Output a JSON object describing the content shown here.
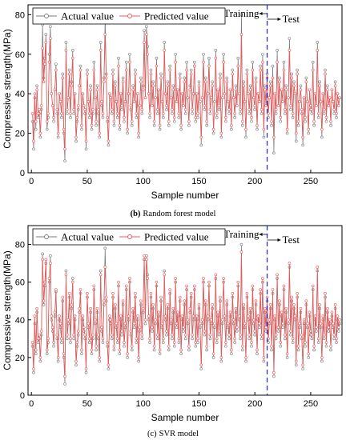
{
  "chart_data": [
    {
      "type": "line",
      "panel_caption": {
        "letter": "(b)",
        "text": "Random forest model"
      },
      "xlabel": "Sample number",
      "ylabel": "Compressive strength(MPa)",
      "xlim": [
        -3,
        278
      ],
      "ylim": [
        0,
        85
      ],
      "xticks": [
        0,
        50,
        100,
        150,
        200,
        250
      ],
      "yticks": [
        0,
        20,
        40,
        60,
        80
      ],
      "split_x": 211,
      "split_labels": {
        "left": "Training",
        "right": "Test"
      },
      "legend_position": "top-left",
      "series": [
        {
          "name": "Actual value",
          "color": "#7a7a7a",
          "marker": "circle",
          "values": [
            26,
            12,
            38,
            22,
            44,
            28,
            30,
            18,
            32,
            75,
            48,
            58,
            70,
            22,
            28,
            60,
            74,
            40,
            34,
            26,
            42,
            55,
            30,
            18,
            40,
            36,
            28,
            50,
            20,
            6,
            66,
            30,
            38,
            52,
            28,
            46,
            62,
            30,
            40,
            16,
            26,
            32,
            44,
            54,
            22,
            40,
            34,
            30,
            12,
            52,
            36,
            28,
            44,
            22,
            30,
            56,
            38,
            24,
            44,
            30,
            18,
            66,
            34,
            28,
            48,
            78,
            50,
            26,
            14,
            40,
            38,
            30,
            52,
            24,
            46,
            36,
            28,
            58,
            22,
            40,
            32,
            48,
            26,
            36,
            56,
            20,
            40,
            60,
            32,
            24,
            44,
            36,
            52,
            28,
            40,
            18,
            34,
            48,
            30,
            44,
            72,
            38,
            74,
            64,
            40,
            28,
            52,
            34,
            46,
            24,
            38,
            58,
            30,
            42,
            22,
            50,
            36,
            28,
            66,
            40,
            32,
            46,
            24,
            54,
            38,
            30,
            44,
            26,
            60,
            36,
            42,
            28,
            50,
            22,
            40,
            34,
            48,
            30,
            56,
            38,
            24,
            44,
            52,
            30,
            40,
            56,
            26,
            40,
            28,
            46,
            36,
            14,
            38,
            60,
            32,
            48,
            24,
            40,
            58,
            30,
            38,
            46,
            20,
            36,
            62,
            28,
            42,
            32,
            50,
            18,
            38,
            60,
            40,
            26,
            48,
            36,
            30,
            42,
            22,
            52,
            38,
            28,
            44,
            34,
            58,
            40,
            30,
            80,
            24,
            46,
            36,
            18,
            52,
            40,
            30,
            44,
            26,
            56,
            38,
            32,
            48,
            22,
            40,
            36,
            54,
            30,
            60,
            18,
            44,
            34,
            50,
            28,
            38,
            46,
            24,
            54,
            10,
            40,
            30,
            62,
            34,
            48,
            26,
            42,
            36,
            56,
            30,
            44,
            20,
            38,
            68,
            32,
            50,
            28,
            46,
            40,
            16,
            52,
            24,
            36,
            44,
            30,
            14,
            38,
            26,
            48,
            36,
            20,
            42,
            32,
            30,
            56,
            24,
            40,
            34,
            66,
            28,
            46,
            36,
            18,
            40,
            30,
            52,
            26,
            44,
            34,
            38,
            24,
            42,
            36,
            30,
            46,
            28,
            40,
            34,
            38
          ]
        },
        {
          "name": "Predicted value",
          "color": "#ef5757",
          "marker": "circle",
          "values": [
            30,
            16,
            40,
            26,
            42,
            30,
            32,
            20,
            34,
            63,
            46,
            55,
            66,
            26,
            30,
            56,
            68,
            40,
            34,
            28,
            42,
            52,
            32,
            20,
            40,
            36,
            30,
            48,
            22,
            12,
            62,
            32,
            38,
            50,
            30,
            44,
            58,
            32,
            40,
            18,
            28,
            34,
            44,
            52,
            24,
            40,
            34,
            32,
            16,
            50,
            36,
            30,
            42,
            24,
            32,
            52,
            38,
            26,
            42,
            32,
            20,
            62,
            36,
            30,
            46,
            70,
            48,
            28,
            16,
            40,
            38,
            32,
            50,
            26,
            44,
            36,
            30,
            54,
            24,
            40,
            34,
            46,
            28,
            36,
            52,
            22,
            40,
            56,
            34,
            26,
            42,
            36,
            50,
            30,
            40,
            20,
            34,
            46,
            32,
            42,
            66,
            38,
            70,
            60,
            40,
            30,
            50,
            34,
            44,
            26,
            38,
            54,
            32,
            42,
            24,
            48,
            36,
            30,
            62,
            40,
            34,
            44,
            26,
            52,
            38,
            32,
            42,
            28,
            56,
            36,
            42,
            30,
            48,
            24,
            40,
            34,
            46,
            32,
            52,
            38,
            26,
            42,
            50,
            32,
            40,
            54,
            28,
            40,
            30,
            44,
            36,
            18,
            38,
            56,
            34,
            46,
            26,
            40,
            54,
            32,
            38,
            44,
            22,
            36,
            58,
            30,
            42,
            34,
            48,
            20,
            38,
            56,
            40,
            28,
            46,
            36,
            32,
            42,
            24,
            50,
            38,
            30,
            42,
            34,
            54,
            40,
            32,
            70,
            26,
            44,
            36,
            22,
            50,
            40,
            32,
            42,
            28,
            52,
            38,
            34,
            46,
            24,
            40,
            36,
            52,
            32,
            56,
            22,
            42,
            34,
            48,
            30,
            38,
            44,
            26,
            48,
            18,
            40,
            32,
            56,
            34,
            46,
            28,
            42,
            36,
            52,
            32,
            42,
            22,
            38,
            62,
            34,
            48,
            30,
            44,
            40,
            20,
            50,
            26,
            36,
            42,
            32,
            18,
            38,
            28,
            46,
            36,
            22,
            42,
            34,
            32,
            52,
            26,
            40,
            34,
            62,
            30,
            44,
            36,
            22,
            40,
            32,
            50,
            28,
            42,
            34,
            38,
            26,
            42,
            36,
            32,
            44,
            30,
            40,
            34,
            38
          ]
        }
      ]
    },
    {
      "type": "line",
      "panel_caption": {
        "letter": "(c)",
        "text": "SVR model"
      },
      "xlabel": "Sample number",
      "ylabel": "Compressive strength(MPa)",
      "xlim": [
        -3,
        278
      ],
      "ylim": [
        0,
        90
      ],
      "xticks": [
        0,
        50,
        100,
        150,
        200,
        250
      ],
      "yticks": [
        0,
        20,
        40,
        60,
        80
      ],
      "split_x": 211,
      "split_labels": {
        "left": "Training",
        "right": "Test"
      },
      "legend_position": "top-left",
      "series": [
        {
          "name": "Actual value",
          "color": "#7a7a7a",
          "marker": "circle",
          "values": [
            26,
            12,
            38,
            22,
            44,
            28,
            30,
            18,
            32,
            75,
            48,
            58,
            70,
            22,
            28,
            60,
            74,
            40,
            34,
            26,
            42,
            55,
            30,
            18,
            40,
            36,
            28,
            50,
            20,
            6,
            66,
            30,
            38,
            52,
            28,
            46,
            62,
            30,
            40,
            16,
            26,
            32,
            44,
            54,
            22,
            40,
            34,
            30,
            12,
            52,
            36,
            28,
            44,
            22,
            30,
            56,
            38,
            24,
            44,
            30,
            18,
            66,
            34,
            28,
            48,
            78,
            50,
            26,
            14,
            40,
            38,
            30,
            52,
            24,
            46,
            36,
            28,
            58,
            22,
            40,
            32,
            48,
            26,
            36,
            56,
            20,
            40,
            60,
            32,
            24,
            44,
            36,
            52,
            28,
            40,
            18,
            34,
            48,
            30,
            44,
            72,
            38,
            74,
            64,
            40,
            28,
            52,
            34,
            46,
            24,
            38,
            58,
            30,
            42,
            22,
            50,
            36,
            28,
            66,
            40,
            32,
            46,
            24,
            54,
            38,
            30,
            44,
            26,
            60,
            36,
            42,
            28,
            50,
            22,
            40,
            34,
            48,
            30,
            56,
            38,
            24,
            44,
            52,
            30,
            40,
            56,
            26,
            40,
            28,
            46,
            36,
            14,
            38,
            60,
            32,
            48,
            24,
            40,
            58,
            30,
            38,
            46,
            20,
            36,
            62,
            28,
            42,
            32,
            50,
            18,
            38,
            60,
            40,
            26,
            48,
            36,
            30,
            42,
            22,
            52,
            38,
            28,
            44,
            34,
            58,
            40,
            30,
            80,
            24,
            46,
            36,
            18,
            52,
            40,
            30,
            44,
            26,
            56,
            38,
            32,
            48,
            22,
            40,
            36,
            54,
            30,
            60,
            18,
            44,
            34,
            50,
            28,
            38,
            46,
            24,
            54,
            10,
            40,
            30,
            62,
            34,
            48,
            26,
            42,
            36,
            56,
            30,
            44,
            20,
            38,
            68,
            32,
            50,
            28,
            46,
            40,
            16,
            52,
            24,
            36,
            44,
            30,
            14,
            38,
            26,
            48,
            36,
            20,
            42,
            32,
            30,
            56,
            24,
            40,
            34,
            66,
            28,
            46,
            36,
            18,
            40,
            30,
            52,
            26,
            44,
            34,
            38,
            24,
            42,
            36,
            30,
            46,
            28,
            40,
            34,
            38
          ]
        },
        {
          "name": "Predicted value",
          "color": "#ef5757",
          "marker": "circle",
          "values": [
            28,
            14,
            42,
            24,
            46,
            30,
            32,
            20,
            34,
            72,
            50,
            60,
            72,
            24,
            30,
            62,
            70,
            42,
            36,
            28,
            44,
            56,
            32,
            20,
            42,
            38,
            30,
            52,
            22,
            10,
            64,
            32,
            40,
            54,
            30,
            48,
            60,
            32,
            42,
            18,
            28,
            34,
            46,
            56,
            24,
            42,
            36,
            32,
            14,
            54,
            38,
            30,
            46,
            24,
            32,
            58,
            40,
            26,
            46,
            32,
            20,
            64,
            36,
            30,
            50,
            68,
            52,
            28,
            16,
            42,
            40,
            32,
            54,
            26,
            48,
            38,
            30,
            60,
            24,
            42,
            34,
            50,
            28,
            38,
            58,
            22,
            42,
            62,
            34,
            26,
            46,
            38,
            54,
            30,
            42,
            20,
            36,
            50,
            32,
            46,
            74,
            40,
            72,
            62,
            42,
            30,
            54,
            36,
            48,
            26,
            40,
            60,
            32,
            44,
            24,
            52,
            38,
            30,
            64,
            42,
            34,
            48,
            26,
            56,
            40,
            32,
            46,
            28,
            62,
            38,
            44,
            30,
            52,
            24,
            42,
            36,
            50,
            32,
            58,
            40,
            26,
            46,
            54,
            32,
            42,
            58,
            28,
            42,
            30,
            48,
            38,
            16,
            40,
            62,
            34,
            50,
            26,
            42,
            60,
            32,
            40,
            48,
            22,
            38,
            64,
            30,
            44,
            34,
            52,
            20,
            40,
            62,
            42,
            28,
            50,
            38,
            32,
            44,
            24,
            54,
            40,
            30,
            46,
            36,
            60,
            42,
            32,
            76,
            26,
            48,
            38,
            20,
            54,
            42,
            32,
            46,
            28,
            58,
            40,
            34,
            50,
            24,
            42,
            38,
            56,
            32,
            62,
            20,
            46,
            36,
            52,
            30,
            40,
            48,
            26,
            56,
            12,
            42,
            32,
            64,
            36,
            50,
            28,
            44,
            38,
            58,
            32,
            46,
            22,
            40,
            70,
            34,
            52,
            30,
            48,
            42,
            18,
            54,
            26,
            38,
            46,
            32,
            16,
            40,
            28,
            50,
            38,
            22,
            44,
            34,
            32,
            58,
            26,
            42,
            36,
            68,
            30,
            48,
            38,
            20,
            42,
            32,
            54,
            28,
            46,
            36,
            40,
            26,
            44,
            38,
            32,
            48,
            30,
            42,
            36,
            40
          ]
        }
      ]
    }
  ]
}
